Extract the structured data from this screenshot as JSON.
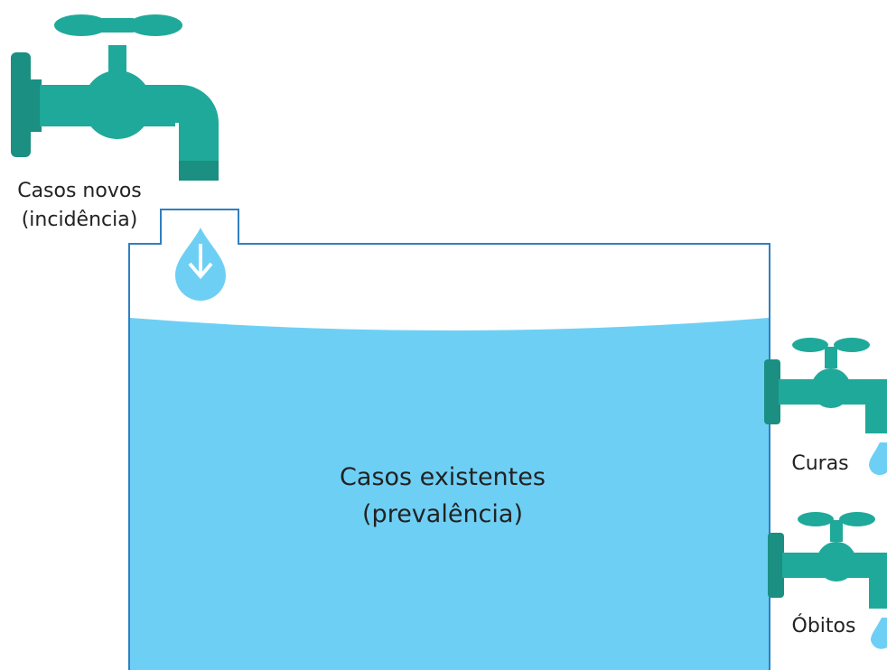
{
  "inflow": {
    "label_line1": "Casos novos",
    "label_line2": "(incidência)"
  },
  "tank": {
    "label_line1": "Casos existentes",
    "label_line2": "(prevalência)"
  },
  "outflows": [
    {
      "label": "Curas"
    },
    {
      "label": "Óbitos"
    }
  ]
}
